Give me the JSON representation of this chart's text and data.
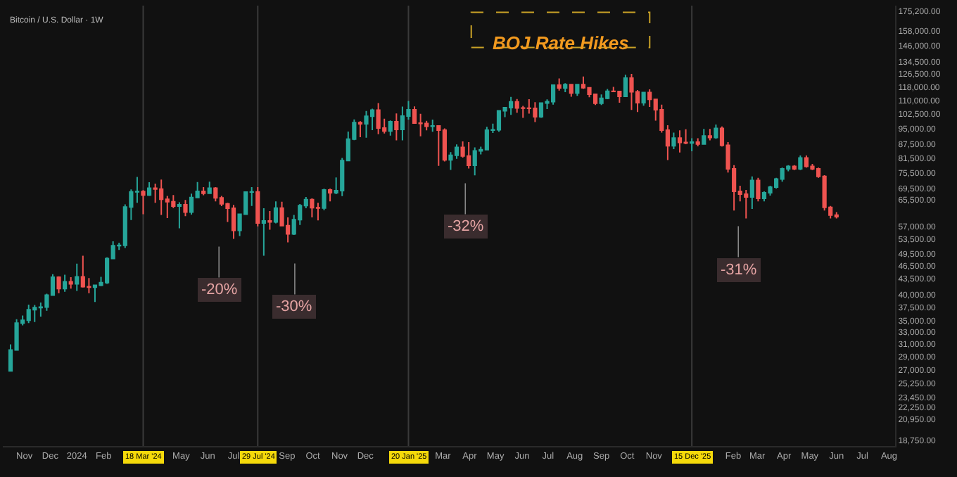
{
  "chart_data": {
    "type": "candlestick",
    "title": "BOJ Rate Hikes",
    "subtitle": "Bitcoin / U.S. Dollar · 1W",
    "x": [
      "2023-10-16",
      "2023-10-23",
      "2023-10-30",
      "2023-11-06",
      "2023-11-13",
      "2023-11-20",
      "2023-11-27",
      "2023-12-04",
      "2023-12-11",
      "2023-12-18",
      "2023-12-25",
      "2024-01-01",
      "2024-01-08",
      "2024-01-15",
      "2024-01-22",
      "2024-01-29",
      "2024-02-05",
      "2024-02-12",
      "2024-02-19",
      "2024-02-26",
      "2024-03-04",
      "2024-03-11",
      "2024-03-18",
      "2024-03-25",
      "2024-04-01",
      "2024-04-08",
      "2024-04-15",
      "2024-04-22",
      "2024-04-29",
      "2024-05-06",
      "2024-05-13",
      "2024-05-20",
      "2024-05-27",
      "2024-06-03",
      "2024-06-10",
      "2024-06-17",
      "2024-06-24",
      "2024-07-01",
      "2024-07-08",
      "2024-07-15",
      "2024-07-22",
      "2024-07-29",
      "2024-08-05",
      "2024-08-12",
      "2024-08-19",
      "2024-08-26",
      "2024-09-02",
      "2024-09-09",
      "2024-09-16",
      "2024-09-23",
      "2024-09-30",
      "2024-10-07",
      "2024-10-14",
      "2024-10-21",
      "2024-10-28",
      "2024-11-04",
      "2024-11-11",
      "2024-11-18",
      "2024-11-25",
      "2024-12-02",
      "2024-12-09",
      "2024-12-16",
      "2024-12-23",
      "2024-12-30",
      "2025-01-06",
      "2025-01-13",
      "2025-01-20",
      "2025-01-27",
      "2025-02-03",
      "2025-02-10",
      "2025-02-17",
      "2025-02-24",
      "2025-03-03",
      "2025-03-10",
      "2025-03-17",
      "2025-03-24",
      "2025-03-31",
      "2025-04-07",
      "2025-04-14",
      "2025-04-21",
      "2025-04-28",
      "2025-05-05",
      "2025-05-12",
      "2025-05-19",
      "2025-05-26",
      "2025-06-02",
      "2025-06-09",
      "2025-06-16",
      "2025-06-23",
      "2025-06-30",
      "2025-07-07",
      "2025-07-14",
      "2025-07-21",
      "2025-07-28",
      "2025-08-04",
      "2025-08-11",
      "2025-08-18",
      "2025-08-25",
      "2025-09-01",
      "2025-09-08",
      "2025-09-15",
      "2025-09-22",
      "2025-09-29",
      "2025-10-06",
      "2025-10-13",
      "2025-10-20",
      "2025-10-27",
      "2025-11-03",
      "2025-11-10",
      "2025-11-17",
      "2025-11-24",
      "2025-12-01",
      "2025-12-08",
      "2025-12-15",
      "2025-12-22",
      "2025-12-29",
      "2026-01-05",
      "2026-01-12",
      "2026-01-19",
      "2026-01-26",
      "2026-02-02",
      "2026-02-09",
      "2026-02-16",
      "2026-02-23",
      "2026-03-02",
      "2026-03-09",
      "2026-03-16",
      "2026-03-23",
      "2026-03-30",
      "2026-04-06",
      "2026-04-13",
      "2026-04-20",
      "2026-04-27",
      "2026-05-04",
      "2026-05-11",
      "2026-05-18",
      "2026-05-25",
      "2026-06-01"
    ],
    "ohlc": [
      [
        26900,
        30900,
        26800,
        30000
      ],
      [
        30000,
        35200,
        29900,
        34500
      ],
      [
        34500,
        35900,
        34100,
        35000
      ],
      [
        35000,
        38000,
        34500,
        37000
      ],
      [
        37000,
        37900,
        34700,
        37400
      ],
      [
        37400,
        38400,
        35700,
        37500
      ],
      [
        37500,
        40200,
        36800,
        39900
      ],
      [
        39900,
        44500,
        39900,
        43800
      ],
      [
        43800,
        44000,
        40300,
        41300
      ],
      [
        41300,
        44400,
        40600,
        42800
      ],
      [
        42800,
        43800,
        41300,
        42300
      ],
      [
        42300,
        47000,
        40800,
        43900
      ],
      [
        43900,
        49000,
        41500,
        41700
      ],
      [
        41700,
        43600,
        40300,
        41600
      ],
      [
        41600,
        42000,
        38500,
        42000
      ],
      [
        42000,
        43900,
        41800,
        42600
      ],
      [
        42600,
        48600,
        42300,
        48300
      ],
      [
        48300,
        52800,
        48300,
        51600
      ],
      [
        51600,
        52400,
        50500,
        51700
      ],
      [
        51700,
        64000,
        51000,
        63100
      ],
      [
        63100,
        69200,
        59000,
        68300
      ],
      [
        68300,
        73800,
        64500,
        68400
      ],
      [
        68400,
        68900,
        60800,
        67200
      ],
      [
        67200,
        71800,
        66900,
        69600
      ],
      [
        69600,
        71300,
        64500,
        69300
      ],
      [
        69300,
        72800,
        60600,
        65700
      ],
      [
        65700,
        66900,
        59600,
        64900
      ],
      [
        64900,
        67200,
        62800,
        63400
      ],
      [
        63400,
        64700,
        56500,
        63900
      ],
      [
        63900,
        65500,
        60200,
        61500
      ],
      [
        61500,
        67700,
        60700,
        66300
      ],
      [
        66300,
        71900,
        66100,
        68500
      ],
      [
        68500,
        70000,
        67100,
        67800
      ],
      [
        67800,
        72000,
        67700,
        69600
      ],
      [
        69600,
        70000,
        65000,
        66200
      ],
      [
        66200,
        66900,
        63400,
        64200
      ],
      [
        64200,
        64500,
        58400,
        62700
      ],
      [
        62700,
        63800,
        53500,
        55900
      ],
      [
        55900,
        61000,
        54300,
        60800
      ],
      [
        60800,
        68500,
        60600,
        68200
      ],
      [
        68200,
        70000,
        63500,
        68300
      ],
      [
        68300,
        70000,
        57100,
        58100
      ],
      [
        58100,
        62700,
        49000,
        58700
      ],
      [
        58700,
        61800,
        56100,
        58400
      ],
      [
        58400,
        65000,
        58000,
        62800
      ],
      [
        62800,
        64900,
        57200,
        57300
      ],
      [
        57300,
        59800,
        52500,
        54900
      ],
      [
        54900,
        60600,
        54600,
        59100
      ],
      [
        59100,
        64100,
        57500,
        63600
      ],
      [
        63600,
        66500,
        62700,
        65600
      ],
      [
        65600,
        66000,
        59800,
        62900
      ],
      [
        62900,
        64500,
        58900,
        62800
      ],
      [
        62800,
        69400,
        62100,
        69000
      ],
      [
        69000,
        69500,
        65000,
        68000
      ],
      [
        68000,
        73600,
        67500,
        68700
      ],
      [
        68700,
        81500,
        66800,
        80400
      ],
      [
        80400,
        93500,
        80200,
        89900
      ],
      [
        89900,
        99600,
        89400,
        97900
      ],
      [
        97900,
        98700,
        90800,
        97300
      ],
      [
        97300,
        104000,
        90500,
        101200
      ],
      [
        101200,
        105300,
        94200,
        104500
      ],
      [
        104500,
        108400,
        92200,
        95200
      ],
      [
        95200,
        99900,
        92500,
        93700
      ],
      [
        93700,
        99000,
        91500,
        98400
      ],
      [
        98400,
        102700,
        89300,
        94500
      ],
      [
        94500,
        106400,
        89300,
        101300
      ],
      [
        101300,
        109600,
        99500,
        104700
      ],
      [
        104700,
        106500,
        97500,
        97700
      ],
      [
        97700,
        102500,
        91200,
        97500
      ],
      [
        97500,
        98800,
        94100,
        96100
      ],
      [
        96100,
        99500,
        93400,
        96300
      ],
      [
        96300,
        96500,
        78200,
        94200
      ],
      [
        94200,
        95000,
        80000,
        80700
      ],
      [
        80700,
        84000,
        76600,
        82600
      ],
      [
        82600,
        87400,
        81100,
        86100
      ],
      [
        86100,
        88800,
        81600,
        82300
      ],
      [
        82300,
        88500,
        77100,
        78400
      ],
      [
        78400,
        86100,
        74400,
        84500
      ],
      [
        84500,
        86400,
        83000,
        85100
      ],
      [
        85100,
        95800,
        85100,
        94200
      ],
      [
        94200,
        97400,
        92800,
        94300
      ],
      [
        94300,
        104100,
        93400,
        104100
      ],
      [
        104100,
        106000,
        100800,
        105900
      ],
      [
        105900,
        111900,
        102000,
        109100
      ],
      [
        109100,
        110700,
        103100,
        105700
      ],
      [
        105700,
        106800,
        100400,
        105600
      ],
      [
        105600,
        110600,
        102600,
        105500
      ],
      [
        105500,
        108900,
        98200,
        100900
      ],
      [
        100900,
        108500,
        100400,
        108400
      ],
      [
        108400,
        110500,
        105100,
        109200
      ],
      [
        109200,
        119500,
        107500,
        119000
      ],
      [
        119000,
        123200,
        115700,
        117300
      ],
      [
        117300,
        120200,
        114700,
        119400
      ],
      [
        119400,
        119800,
        112000,
        114200
      ],
      [
        114200,
        119300,
        112600,
        119300
      ],
      [
        119300,
        124500,
        116800,
        117400
      ],
      [
        117400,
        117600,
        111700,
        113500
      ],
      [
        113500,
        113500,
        107300,
        108300
      ],
      [
        108300,
        113400,
        107300,
        111100
      ],
      [
        111100,
        116700,
        110600,
        115300
      ],
      [
        115300,
        117900,
        114900,
        115200
      ],
      [
        115200,
        115400,
        108600,
        112200
      ],
      [
        112200,
        125600,
        111800,
        123500
      ],
      [
        123500,
        126200,
        104600,
        115000
      ],
      [
        115000,
        116000,
        103500,
        108600
      ],
      [
        108600,
        114600,
        106900,
        114500
      ],
      [
        114500,
        116400,
        106300,
        110500
      ],
      [
        110500,
        110800,
        98900,
        104700
      ],
      [
        104700,
        107500,
        93000,
        94200
      ],
      [
        94200,
        96600,
        80600,
        86800
      ],
      [
        86800,
        93000,
        85300,
        90400
      ],
      [
        90400,
        94100,
        83800,
        88300
      ],
      [
        88300,
        94600,
        87500,
        88100
      ],
      [
        88100,
        90300,
        84400,
        88500
      ],
      [
        88500,
        90300,
        86600,
        87600
      ],
      [
        87600,
        94800,
        87400,
        91400
      ],
      [
        91400,
        94800,
        89300,
        90600
      ],
      [
        90600,
        97000,
        90000,
        95000
      ],
      [
        95000,
        96000,
        86500,
        87000
      ],
      [
        87000,
        88500,
        75500,
        77000
      ],
      [
        77000,
        78500,
        62000,
        68500
      ],
      [
        68500,
        70500,
        65000,
        67500
      ],
      [
        67500,
        69000,
        59500,
        66500
      ],
      [
        66500,
        74000,
        62500,
        72500
      ],
      [
        72500,
        73500,
        65000,
        66000
      ],
      [
        66000,
        68500,
        65000,
        68000
      ],
      [
        68000,
        70500,
        67000,
        70000
      ],
      [
        70000,
        73500,
        69500,
        73000
      ],
      [
        73000,
        77500,
        72000,
        77000
      ],
      [
        77000,
        78500,
        76000,
        78000
      ],
      [
        78000,
        78500,
        76500,
        77000
      ],
      [
        77000,
        82500,
        76500,
        81500
      ],
      [
        81500,
        82500,
        77500,
        78000
      ],
      [
        78000,
        79000,
        76500,
        77000
      ],
      [
        77000,
        77500,
        73500,
        74000
      ],
      [
        74000,
        74500,
        62000,
        63000
      ],
      [
        63000,
        63500,
        59500,
        60500
      ],
      [
        60500,
        61500,
        59500,
        60000
      ]
    ],
    "log": "y",
    "grid": false,
    "xlim": [
      "2023-10-07",
      "2026-08-08"
    ],
    "xticks": [
      {
        "value": "2023-11-01",
        "label": "Nov"
      },
      {
        "value": "2023-12-01",
        "label": "Dec"
      },
      {
        "value": "2024-01-01",
        "label": "2024"
      },
      {
        "value": "2024-02-01",
        "label": "Feb"
      },
      {
        "value": "2024-05-01",
        "label": "May"
      },
      {
        "value": "2024-06-01",
        "label": "Jun"
      },
      {
        "value": "2024-07-01",
        "label": "Jul"
      },
      {
        "value": "2024-09-01",
        "label": "Sep"
      },
      {
        "value": "2024-10-01",
        "label": "Oct"
      },
      {
        "value": "2024-11-01",
        "label": "Nov"
      },
      {
        "value": "2024-12-01",
        "label": "Dec"
      },
      {
        "value": "2025-03-01",
        "label": "Mar"
      },
      {
        "value": "2025-04-01",
        "label": "Apr"
      },
      {
        "value": "2025-05-01",
        "label": "May"
      },
      {
        "value": "2025-06-01",
        "label": "Jun"
      },
      {
        "value": "2025-07-01",
        "label": "Jul"
      },
      {
        "value": "2025-08-01",
        "label": "Aug"
      },
      {
        "value": "2025-09-01",
        "label": "Sep"
      },
      {
        "value": "2025-10-01",
        "label": "Oct"
      },
      {
        "value": "2025-11-01",
        "label": "Nov"
      },
      {
        "value": "2026-02-01",
        "label": "Feb"
      },
      {
        "value": "2026-03-01",
        "label": "Mar"
      },
      {
        "value": "2026-04-01",
        "label": "Apr"
      },
      {
        "value": "2026-05-01",
        "label": "May"
      },
      {
        "value": "2026-06-01",
        "label": "Jun"
      },
      {
        "value": "2026-07-01",
        "label": "Jul"
      },
      {
        "value": "2026-08-01",
        "label": "Aug"
      }
    ],
    "ylim": [
      18200,
      180000
    ],
    "yticks": [
      {
        "value": 175200,
        "label": "175,200.00"
      },
      {
        "value": 158000,
        "label": "158,000.00"
      },
      {
        "value": 146000,
        "label": "146,000.00"
      },
      {
        "value": 134500,
        "label": "134,500.00"
      },
      {
        "value": 126500,
        "label": "126,500.00"
      },
      {
        "value": 118000,
        "label": "118,000.00"
      },
      {
        "value": 110000,
        "label": "110,000.00"
      },
      {
        "value": 102500,
        "label": "102,500.00"
      },
      {
        "value": 95000,
        "label": "95,000.00"
      },
      {
        "value": 87500,
        "label": "87,500.00"
      },
      {
        "value": 81500,
        "label": "81,500.00"
      },
      {
        "value": 75500,
        "label": "75,500.00"
      },
      {
        "value": 69500,
        "label": "69,500.00"
      },
      {
        "value": 65500,
        "label": "65,500.00"
      },
      {
        "value": 57000,
        "label": "57,000.00"
      },
      {
        "value": 53500,
        "label": "53,500.00"
      },
      {
        "value": 49500,
        "label": "49,500.00"
      },
      {
        "value": 46500,
        "label": "46,500.00"
      },
      {
        "value": 43500,
        "label": "43,500.00"
      },
      {
        "value": 40000,
        "label": "40,000.00"
      },
      {
        "value": 37500,
        "label": "37,500.00"
      },
      {
        "value": 35000,
        "label": "35,000.00"
      },
      {
        "value": 33000,
        "label": "33,000.00"
      },
      {
        "value": 31000,
        "label": "31,000.00"
      },
      {
        "value": 29000,
        "label": "29,000.00"
      },
      {
        "value": 27000,
        "label": "27,000.00"
      },
      {
        "value": 25250,
        "label": "25,250.00"
      },
      {
        "value": 23450,
        "label": "23,450.00"
      },
      {
        "value": 22250,
        "label": "22,250.00"
      },
      {
        "value": 20950,
        "label": "20,950.00"
      },
      {
        "value": 18750,
        "label": "18,750.00"
      }
    ],
    "ref_lines": [
      {
        "axis": "x",
        "value": "2024-03-18",
        "label": "18 Mar '24"
      },
      {
        "axis": "x",
        "value": "2024-07-29",
        "label": "29 Jul '24"
      },
      {
        "axis": "x",
        "value": "2025-01-20",
        "label": "20 Jan '25"
      },
      {
        "axis": "x",
        "value": "2025-12-15",
        "label": "15 Dec '25"
      }
    ],
    "annotations": [
      "-20%",
      "-30%",
      "-32%",
      "-31%"
    ]
  }
}
